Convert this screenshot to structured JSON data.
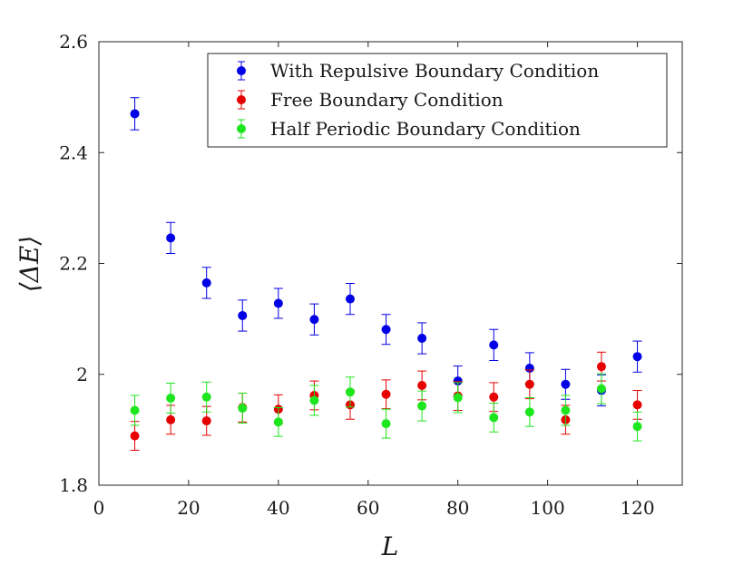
{
  "chart_data": {
    "type": "scatter",
    "title": "",
    "xlabel": "L",
    "ylabel": "⟨ΔE⟩",
    "xlim": [
      0,
      130
    ],
    "ylim": [
      1.8,
      2.6
    ],
    "xticks": [
      0,
      20,
      40,
      60,
      80,
      100,
      120
    ],
    "xtick_labels": [
      "0",
      "20",
      "40",
      "60",
      "80",
      "100",
      "120"
    ],
    "yticks": [
      1.8,
      2.0,
      2.2,
      2.4,
      2.6
    ],
    "ytick_labels": [
      "1.8",
      "2",
      "2.2",
      "2.4",
      "2.6"
    ],
    "grid": false,
    "legend_position": "top-right",
    "series": [
      {
        "name": "With Repulsive Boundary Condition",
        "color": "#0000e6",
        "x": [
          8,
          16,
          24,
          32,
          40,
          48,
          56,
          64,
          72,
          80,
          88,
          96,
          104,
          112,
          120
        ],
        "y": [
          2.47,
          2.246,
          2.165,
          2.106,
          2.128,
          2.099,
          2.136,
          2.081,
          2.065,
          1.988,
          2.053,
          2.011,
          1.982,
          1.971,
          2.032
        ],
        "err": [
          0.029,
          0.028,
          0.028,
          0.028,
          0.027,
          0.028,
          0.028,
          0.027,
          0.028,
          0.027,
          0.028,
          0.028,
          0.027,
          0.028,
          0.028
        ]
      },
      {
        "name": "Free Boundary Condition",
        "color": "#e60000",
        "x": [
          8,
          16,
          24,
          32,
          40,
          48,
          56,
          64,
          72,
          80,
          88,
          96,
          104,
          112,
          120
        ],
        "y": [
          1.889,
          1.918,
          1.916,
          1.94,
          1.937,
          1.962,
          1.945,
          1.964,
          1.98,
          1.961,
          1.959,
          1.982,
          1.918,
          2.014,
          1.945
        ],
        "err": [
          0.026,
          0.026,
          0.026,
          0.026,
          0.026,
          0.026,
          0.026,
          0.026,
          0.026,
          0.026,
          0.026,
          0.026,
          0.026,
          0.026,
          0.026
        ]
      },
      {
        "name": "Half Periodic Boundary Condition",
        "color": "#1ee61e",
        "x": [
          8,
          16,
          24,
          32,
          40,
          48,
          56,
          64,
          72,
          80,
          88,
          96,
          104,
          112,
          120
        ],
        "y": [
          1.935,
          1.957,
          1.959,
          1.939,
          1.914,
          1.953,
          1.968,
          1.911,
          1.943,
          1.958,
          1.922,
          1.932,
          1.935,
          1.974,
          1.906
        ],
        "err": [
          0.027,
          0.027,
          0.027,
          0.027,
          0.026,
          0.027,
          0.027,
          0.026,
          0.027,
          0.027,
          0.026,
          0.026,
          0.027,
          0.027,
          0.026
        ]
      }
    ]
  }
}
